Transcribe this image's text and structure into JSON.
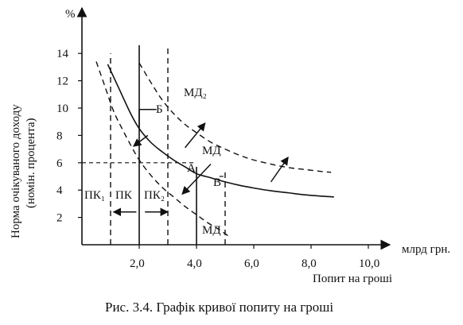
{
  "chart_data": {
    "type": "line",
    "xlabel": "млрд грн.",
    "x_caption": "Попит на гроші",
    "ylabel_unit": "%",
    "ylabel_line1": "Норма очікуваного доходу",
    "ylabel_line2": "(номін. процента)",
    "xlim": [
      0,
      11
    ],
    "ylim": [
      0,
      15.5
    ],
    "x_ticks": [
      2,
      4,
      6,
      8,
      10
    ],
    "x_tick_labels": [
      "2,0",
      "4,0",
      "6,0",
      "8,0",
      "10,0"
    ],
    "y_ticks": [
      2,
      4,
      6,
      8,
      10,
      12,
      14
    ],
    "y_tick_labels": [
      "2",
      "4",
      "6",
      "8",
      "10",
      "12",
      "14"
    ],
    "series": [
      {
        "name": "МД",
        "style": "solid",
        "x": [
          0.9,
          1.3,
          1.7,
          2.0,
          2.4,
          2.8,
          3.2,
          3.6,
          4.0,
          4.5,
          5.0,
          5.5,
          6.0,
          6.6,
          7.2,
          7.8,
          8.4,
          8.8
        ],
        "y": [
          13.2,
          11.4,
          9.6,
          8.5,
          7.5,
          6.8,
          6.2,
          5.7,
          5.2,
          4.9,
          4.6,
          4.35,
          4.15,
          3.95,
          3.8,
          3.65,
          3.55,
          3.5
        ]
      },
      {
        "name": "МД₂",
        "style": "dashed",
        "x": [
          2.0,
          2.4,
          2.8,
          3.2,
          3.6,
          4.0,
          4.5,
          5.0,
          5.5,
          6.0,
          6.6,
          7.2,
          7.8,
          8.4,
          8.7
        ],
        "y": [
          13.3,
          11.9,
          10.6,
          9.6,
          8.8,
          8.2,
          7.5,
          7.0,
          6.55,
          6.2,
          5.9,
          5.65,
          5.5,
          5.35,
          5.3
        ]
      },
      {
        "name": "МД₁",
        "style": "dashed",
        "x": [
          0.5,
          0.8,
          1.1,
          1.4,
          1.7,
          2.0,
          2.4,
          2.8,
          3.2,
          3.6,
          4.0,
          4.4,
          4.8,
          5.2
        ],
        "y": [
          13.4,
          11.6,
          9.8,
          8.5,
          7.3,
          6.2,
          5.1,
          4.2,
          3.5,
          2.8,
          2.2,
          1.6,
          1.1,
          0.5
        ]
      }
    ],
    "vertical_lines": [
      {
        "name": "ПК₁",
        "x": 1.0,
        "style": "dashed"
      },
      {
        "name": "ПК",
        "x": 2.0,
        "style": "solid"
      },
      {
        "name": "ПК₂",
        "x": 3.0,
        "style": "dashed"
      },
      {
        "name": "МД",
        "x": 4.0,
        "style": "solid"
      },
      {
        "name": "МД",
        "x": 5.0,
        "style": "dashed"
      }
    ],
    "guide_lines": [
      {
        "type": "horizontal",
        "y": 6,
        "x_from": 0,
        "x_to": 4.0
      },
      {
        "type": "horizontal",
        "y": 5,
        "x_from": 4.8,
        "x_to": 5.0
      }
    ],
    "annotations": {
      "B_upper": "Б",
      "A": "А",
      "V": "В",
      "MD": "МД",
      "MD2": "МД₂",
      "MD_bottom": "МД",
      "PK1": "ПК₁",
      "PK": "ПК",
      "PK2": "ПК₂"
    },
    "caption": "Рис. 3.4. Графік кривої попиту на гроші"
  }
}
